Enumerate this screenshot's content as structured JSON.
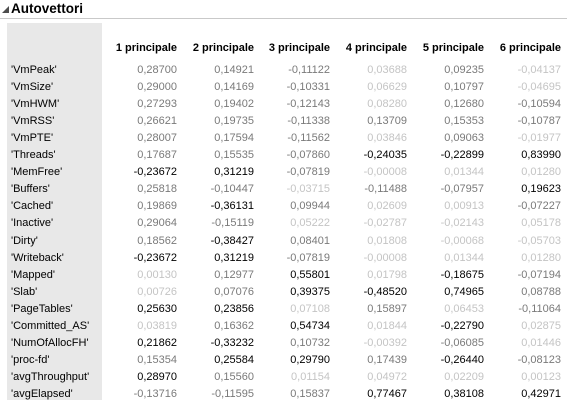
{
  "panel": {
    "title": "Autovettori",
    "disclosure_icon": "disclosure-triangle-icon"
  },
  "table": {
    "columns": [
      "1 principale",
      "2 principale",
      "3 principale",
      "4 principale",
      "5 principale",
      "6 principale"
    ],
    "rows": [
      {
        "label": "'VmPeak'",
        "values": [
          "0,28700",
          "0,14921",
          "-0,11122",
          "0,03688",
          "0,09235",
          "-0,04137"
        ],
        "shade": [
          "m",
          "m",
          "m",
          "f",
          "m",
          "f"
        ]
      },
      {
        "label": "'VmSize'",
        "values": [
          "0,29000",
          "0,14169",
          "-0,10331",
          "0,06629",
          "0,10797",
          "-0,04695"
        ],
        "shade": [
          "m",
          "m",
          "m",
          "f",
          "m",
          "f"
        ]
      },
      {
        "label": "'VmHWM'",
        "values": [
          "0,27293",
          "0,19402",
          "-0,12143",
          "0,08280",
          "0,12680",
          "-0,10594"
        ],
        "shade": [
          "m",
          "m",
          "m",
          "f",
          "m",
          "m"
        ]
      },
      {
        "label": "'VmRSS'",
        "values": [
          "0,26621",
          "0,19735",
          "-0,11338",
          "0,13709",
          "0,15353",
          "-0,10787"
        ],
        "shade": [
          "m",
          "m",
          "m",
          "m",
          "m",
          "m"
        ]
      },
      {
        "label": "'VmPTE'",
        "values": [
          "0,28007",
          "0,17594",
          "-0,11562",
          "0,03846",
          "0,09063",
          "-0,01977"
        ],
        "shade": [
          "m",
          "m",
          "m",
          "f",
          "m",
          "f"
        ]
      },
      {
        "label": "'Threads'",
        "values": [
          "0,17687",
          "0,15535",
          "-0,07860",
          "-0,24035",
          "-0,22899",
          "0,83990"
        ],
        "shade": [
          "m",
          "m",
          "m",
          "s",
          "s",
          "s"
        ]
      },
      {
        "label": "'MemFree'",
        "values": [
          "-0,23672",
          "0,31219",
          "-0,07819",
          "-0,00008",
          "0,01344",
          "0,01280"
        ],
        "shade": [
          "s",
          "s",
          "m",
          "f",
          "f",
          "f"
        ]
      },
      {
        "label": "'Buffers'",
        "values": [
          "0,25818",
          "-0,10447",
          "-0,03715",
          "-0,11488",
          "-0,07957",
          "0,19623"
        ],
        "shade": [
          "m",
          "m",
          "f",
          "m",
          "m",
          "s"
        ]
      },
      {
        "label": "'Cached'",
        "values": [
          "0,19869",
          "-0,36131",
          "0,09944",
          "0,02609",
          "0,00913",
          "-0,07227"
        ],
        "shade": [
          "m",
          "s",
          "m",
          "f",
          "f",
          "m"
        ]
      },
      {
        "label": "'Inactive'",
        "values": [
          "0,29064",
          "-0,15119",
          "0,05222",
          "-0,02787",
          "-0,02143",
          "0,05178"
        ],
        "shade": [
          "m",
          "m",
          "f",
          "f",
          "f",
          "f"
        ]
      },
      {
        "label": "'Dirty'",
        "values": [
          "0,18562",
          "-0,38427",
          "0,08401",
          "0,01808",
          "-0,00068",
          "-0,05703"
        ],
        "shade": [
          "m",
          "s",
          "m",
          "f",
          "f",
          "f"
        ]
      },
      {
        "label": "'Writeback'",
        "values": [
          "-0,23672",
          "0,31219",
          "-0,07819",
          "-0,00008",
          "0,01344",
          "0,01280"
        ],
        "shade": [
          "s",
          "s",
          "m",
          "f",
          "f",
          "f"
        ]
      },
      {
        "label": "'Mapped'",
        "values": [
          "0,00130",
          "0,12977",
          "0,55801",
          "0,01798",
          "-0,18675",
          "-0,07194"
        ],
        "shade": [
          "f",
          "m",
          "s",
          "f",
          "s",
          "m"
        ]
      },
      {
        "label": "'Slab'",
        "values": [
          "0,00726",
          "0,07076",
          "0,39375",
          "-0,48520",
          "0,74965",
          "0,08788"
        ],
        "shade": [
          "f",
          "m",
          "s",
          "s",
          "s",
          "m"
        ]
      },
      {
        "label": "'PageTables'",
        "values": [
          "0,25630",
          "0,23856",
          "0,07108",
          "0,15897",
          "0,06453",
          "-0,11064"
        ],
        "shade": [
          "s",
          "s",
          "f",
          "m",
          "f",
          "m"
        ]
      },
      {
        "label": "'Committed_AS'",
        "values": [
          "0,03819",
          "0,16362",
          "0,54734",
          "0,01844",
          "-0,22790",
          "0,02875"
        ],
        "shade": [
          "f",
          "m",
          "s",
          "f",
          "s",
          "f"
        ]
      },
      {
        "label": "'NumOfAllocFH'",
        "values": [
          "0,21862",
          "-0,33232",
          "0,10732",
          "-0,00392",
          "-0,06085",
          "0,01446"
        ],
        "shade": [
          "s",
          "s",
          "m",
          "f",
          "m",
          "f"
        ]
      },
      {
        "label": "'proc-fd'",
        "values": [
          "0,15354",
          "0,25584",
          "0,29790",
          "0,17439",
          "-0,26440",
          "-0,08123"
        ],
        "shade": [
          "m",
          "s",
          "s",
          "m",
          "s",
          "m"
        ]
      },
      {
        "label": "'avgThroughput'",
        "values": [
          "0,28970",
          "0,15560",
          "0,01154",
          "0,04972",
          "0,02209",
          "0,00123"
        ],
        "shade": [
          "s",
          "m",
          "f",
          "f",
          "f",
          "f"
        ]
      },
      {
        "label": "'avgElapsed'",
        "values": [
          "-0,13716",
          "-0,11595",
          "0,15837",
          "0,77467",
          "0,38108",
          "0,42971"
        ],
        "shade": [
          "m",
          "m",
          "m",
          "s",
          "s",
          "s"
        ]
      }
    ]
  }
}
